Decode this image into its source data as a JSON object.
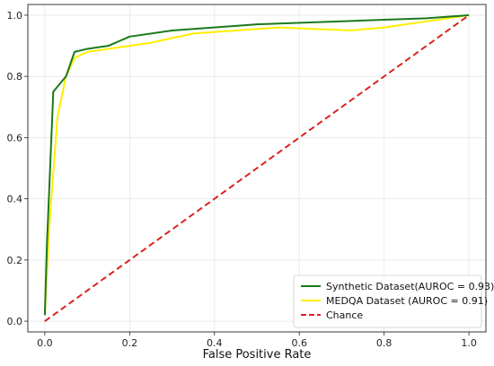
{
  "chart_data": {
    "type": "line",
    "title": "",
    "xlabel": "False Positive Rate",
    "ylabel": "",
    "xlim": [
      -0.04,
      1.04
    ],
    "ylim": [
      -0.035,
      1.035
    ],
    "xticks": [
      "0.0",
      "0.2",
      "0.4",
      "0.6",
      "0.8",
      "1.0"
    ],
    "yticks": [
      "0.0",
      "0.2",
      "0.4",
      "0.6",
      "0.8",
      "1.0"
    ],
    "grid": true,
    "legend_position": "lower-right",
    "series": [
      {
        "name": "Synthetic Dataset(AUROC = 0.93)",
        "color": "#1a7a1a",
        "style": "solid",
        "x": [
          0.0,
          0.005,
          0.02,
          0.05,
          0.07,
          0.1,
          0.15,
          0.2,
          0.3,
          0.5,
          0.7,
          0.8,
          0.9,
          1.0
        ],
        "y": [
          0.02,
          0.25,
          0.75,
          0.8,
          0.88,
          0.89,
          0.9,
          0.93,
          0.95,
          0.97,
          0.98,
          0.985,
          0.99,
          1.0
        ]
      },
      {
        "name": "MEDQA Dataset (AUROC = 0.91)",
        "color": "#ffee00",
        "style": "solid",
        "x": [
          0.0,
          0.01,
          0.03,
          0.05,
          0.07,
          0.1,
          0.15,
          0.25,
          0.35,
          0.55,
          0.72,
          0.8,
          1.0
        ],
        "y": [
          0.02,
          0.3,
          0.67,
          0.8,
          0.86,
          0.88,
          0.89,
          0.91,
          0.94,
          0.96,
          0.95,
          0.96,
          1.0
        ]
      },
      {
        "name": "Chance",
        "color": "#dd2222",
        "style": "dashed",
        "x": [
          0.0,
          1.0
        ],
        "y": [
          0.0,
          1.0
        ]
      }
    ]
  }
}
